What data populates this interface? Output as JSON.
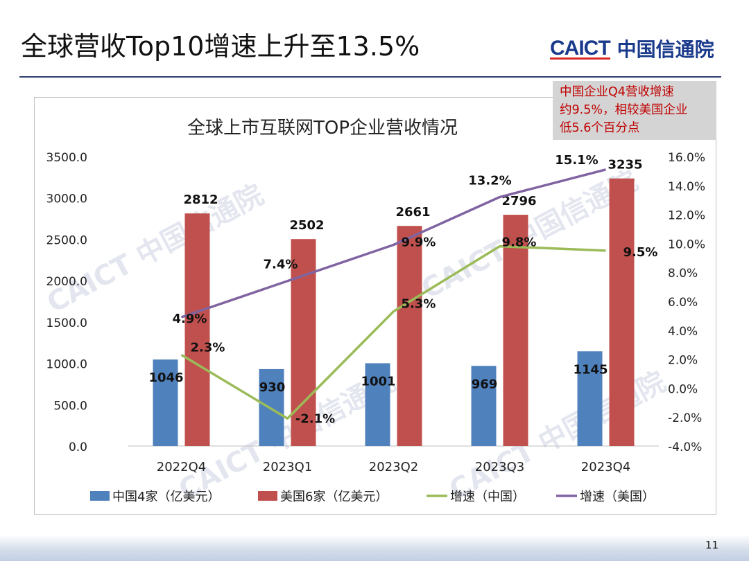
{
  "slide": {
    "title": "全球营收Top10增速上升至13.5%",
    "logo_en": "CAICT",
    "logo_cn": "中国信通院",
    "page_number": "11",
    "callout": [
      "中国企业Q4营收增速",
      "约9.5%，相较美国企业",
      "低5.6个百分点"
    ],
    "watermark": "CAICT 中国信通院"
  },
  "colors": {
    "china_bar": "#4f81bd",
    "us_bar": "#c0504d",
    "china_growth": "#9bbb59",
    "us_growth": "#8064a2",
    "title_rule": "#2e3f6e",
    "callout_text": "#c00000"
  },
  "chart_data": {
    "type": "bar",
    "title": "全球上市互联网TOP企业营收情况",
    "categories": [
      "2022Q4",
      "2023Q1",
      "2023Q2",
      "2023Q3",
      "2023Q4"
    ],
    "ylim": [
      0,
      3500
    ],
    "y_ticks": [
      "0.0",
      "500.0",
      "1000.0",
      "1500.0",
      "2000.0",
      "2500.0",
      "3000.0",
      "3500.0"
    ],
    "y2lim": [
      -4,
      16
    ],
    "y2_ticks": [
      "-4.0%",
      "-2.0%",
      "0.0%",
      "2.0%",
      "4.0%",
      "6.0%",
      "8.0%",
      "10.0%",
      "12.0%",
      "14.0%",
      "16.0%"
    ],
    "grid": false,
    "legend_position": "bottom",
    "series": [
      {
        "name": "中国4家（亿美元）",
        "type": "bar",
        "axis": "left",
        "values": [
          1046,
          930,
          1001,
          969,
          1145
        ],
        "labels": [
          "1046",
          "930",
          "1001",
          "969",
          "1145"
        ]
      },
      {
        "name": "美国6家（亿美元）",
        "type": "bar",
        "axis": "left",
        "values": [
          2812,
          2502,
          2661,
          2796,
          3235
        ],
        "labels": [
          "2812",
          "2502",
          "2661",
          "2796",
          "3235"
        ]
      },
      {
        "name": "增速（中国）",
        "type": "line",
        "axis": "right",
        "values": [
          2.3,
          -2.1,
          5.3,
          9.8,
          9.5
        ],
        "labels": [
          "2.3%",
          "-2.1%",
          "5.3%",
          "9.8%",
          "9.5%"
        ]
      },
      {
        "name": "增速（美国）",
        "type": "line",
        "axis": "right",
        "values": [
          4.9,
          7.4,
          9.9,
          13.2,
          15.1
        ],
        "labels": [
          "4.9%",
          "7.4%",
          "9.9%",
          "13.2%",
          "15.1%"
        ]
      }
    ]
  }
}
